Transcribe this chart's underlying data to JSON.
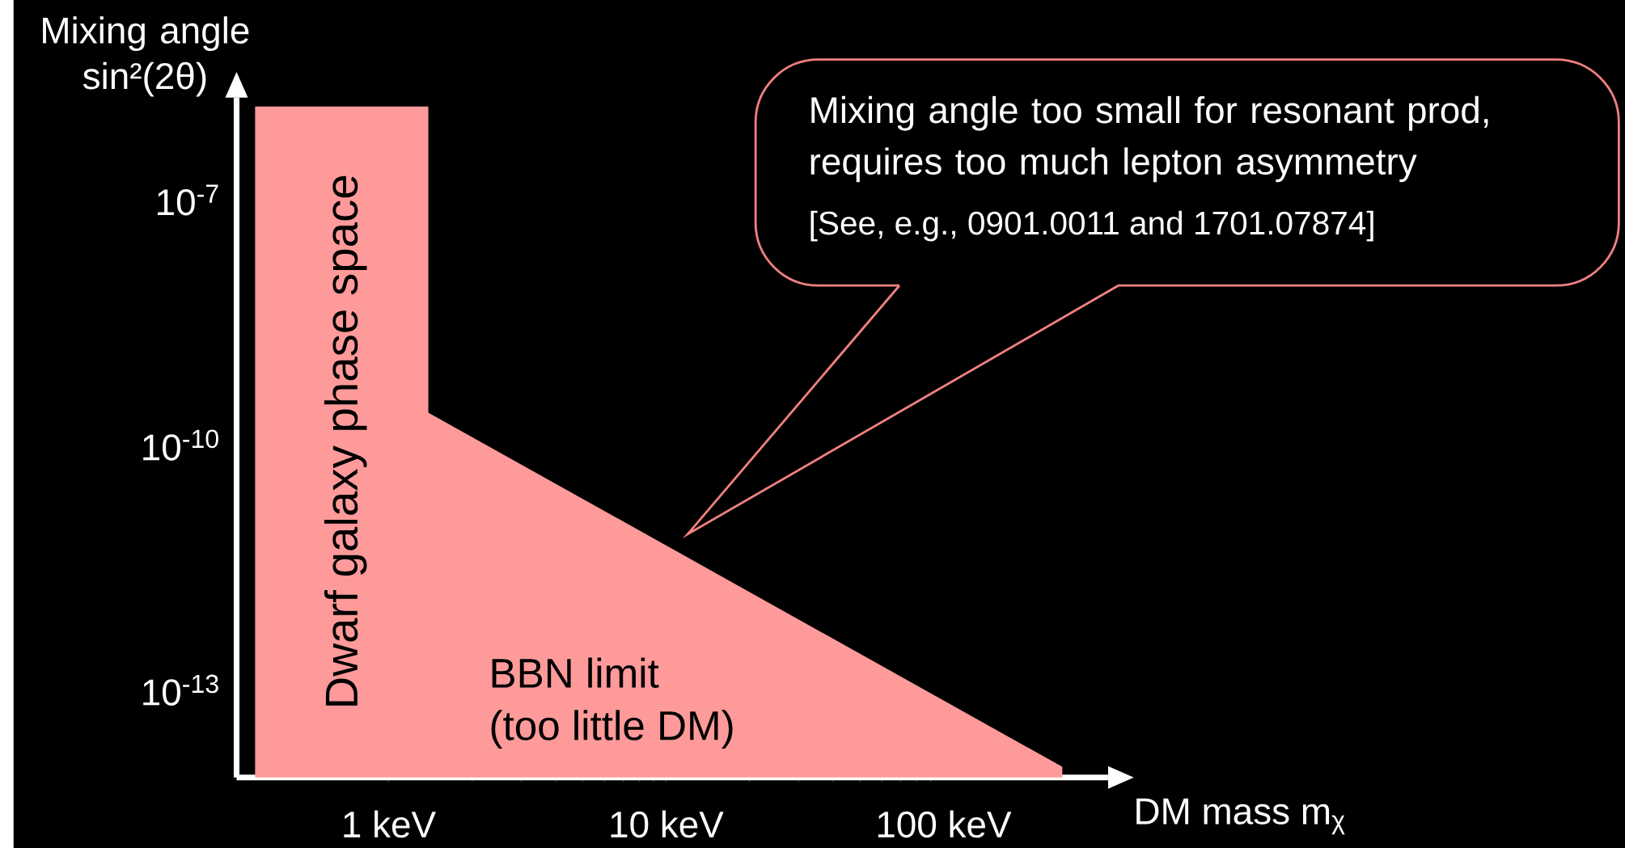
{
  "chart_data": {
    "type": "area",
    "xlabel": "DM mass m$_{χ}$",
    "ylabel": "Mixing angle sin²(2θ)",
    "log": "xy",
    "xlim": [
      0.283,
      392
    ],
    "ylim": [
      8.5e-15,
      1.8e-06
    ],
    "xticks": [
      {
        "value": 1,
        "label": "1 keV"
      },
      {
        "value": 10,
        "label": "10 keV"
      },
      {
        "value": 100,
        "label": "100 keV"
      }
    ],
    "yticks": [
      {
        "value": 1e-07,
        "label": "10$^{-7}$"
      },
      {
        "value": 1e-10,
        "label": "10$^{-10}$"
      },
      {
        "value": 1e-13,
        "label": "10$^{-13}$"
      }
    ],
    "series": [
      {
        "color": "#ff9a9a",
        "x": [
          0.33,
          1.39,
          1.39,
          268
        ],
        "values": [
          1.4e-06,
          1.4e-06,
          2.5e-10,
          1.15e-14
        ]
      }
    ],
    "annotations": [
      "Dwarf galaxy phase space",
      "BBN limit",
      "(too little DM)",
      {
        "text": "Mixing angle too small for resonant prod, requires too much lepton asymmetry"
      },
      "[See, e.g., 0901.0011 and 1701.07874]"
    ]
  }
}
